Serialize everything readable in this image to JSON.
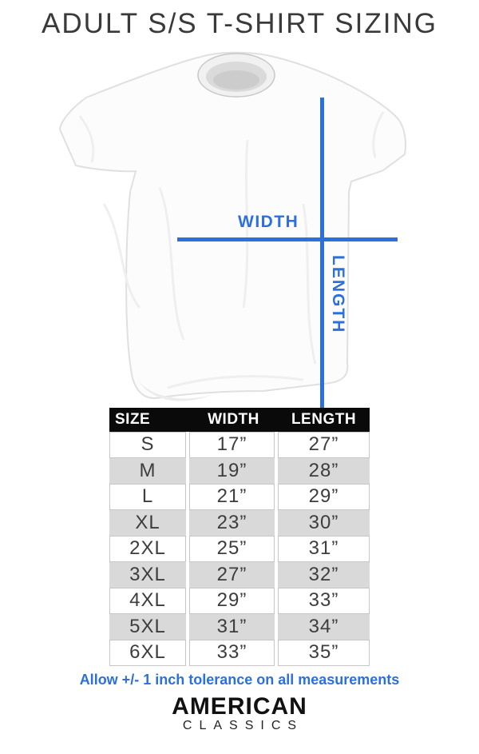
{
  "page": {
    "title": "ADULT S/S T-SHIRT SIZING"
  },
  "diagram": {
    "width_label": "WIDTH",
    "length_label": "LENGTH",
    "line_color": "#2c70dd",
    "shirt_description": "white short-sleeve t-shirt laid flat"
  },
  "chart_data": {
    "type": "table",
    "title": "ADULT S/S T-SHIRT SIZING",
    "columns": [
      "SIZE",
      "WIDTH",
      "LENGTH"
    ],
    "rows": [
      [
        "S",
        "17”",
        "27”"
      ],
      [
        "M",
        "19”",
        "28”"
      ],
      [
        "L",
        "21”",
        "29”"
      ],
      [
        "XL",
        "23”",
        "30”"
      ],
      [
        "2XL",
        "25”",
        "31”"
      ],
      [
        "3XL",
        "27”",
        "32”"
      ],
      [
        "4XL",
        "29”",
        "33”"
      ],
      [
        "5XL",
        "31”",
        "34”"
      ],
      [
        "6XL",
        "33”",
        "35”"
      ]
    ],
    "header_bg": "#0a0a0a",
    "header_text_color": "#ffffff",
    "alt_row_bg": "#d9d9d9",
    "row_alternation": "white, gray, white, gray ..."
  },
  "footer": {
    "tolerance_note": "Allow +/- 1 inch tolerance on all measurements",
    "note_color": "#2c70dd",
    "brand_line1": "AMERICAN",
    "brand_line2": "CLASSICS"
  }
}
